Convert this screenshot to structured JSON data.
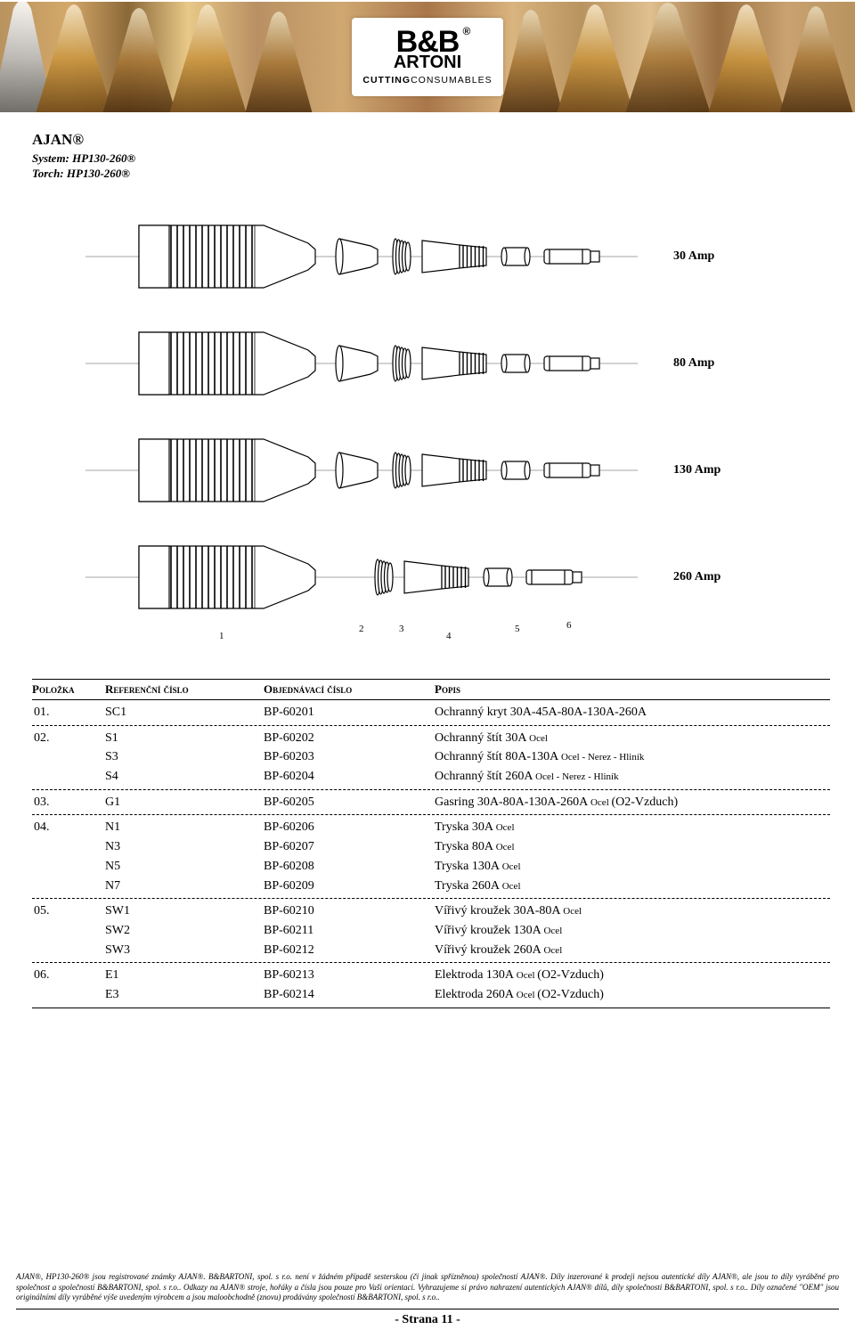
{
  "brand": "AJAN®",
  "system_label": "System: HP130-260®",
  "torch_label": "Torch: HP130-260®",
  "amp_rows": [
    "30 Amp",
    "80 Amp",
    "130 Amp",
    "260 Amp"
  ],
  "part_numbers": [
    "1",
    "2",
    "3",
    "4",
    "5",
    "6"
  ],
  "headers": {
    "item": "Položka",
    "ref": "Referenční číslo",
    "order": "Objednávací číslo",
    "desc": "Popis"
  },
  "groups": [
    {
      "rows": [
        {
          "item": "01.",
          "ref": "SC1",
          "order": "BP-60201",
          "desc": "Ochranný kryt 30A-45A-80A-130A-260A",
          "sub": ""
        }
      ]
    },
    {
      "rows": [
        {
          "item": "02.",
          "ref": "S1",
          "order": "BP-60202",
          "desc": "Ochranný štít  30A ",
          "sub": "Ocel"
        },
        {
          "item": "",
          "ref": "S3",
          "order": "BP-60203",
          "desc": "Ochranný štít  80A-130A ",
          "sub": "Ocel - Nerez - Hliník"
        },
        {
          "item": "",
          "ref": "S4",
          "order": "BP-60204",
          "desc": "Ochranný štít 260A ",
          "sub": "Ocel - Nerez - Hliník"
        }
      ]
    },
    {
      "rows": [
        {
          "item": "03.",
          "ref": "G1",
          "order": "BP-60205",
          "desc": "Gasring 30A-80A-130A-260A ",
          "sub": "Ocel ",
          "tail": "(O2-Vzduch)"
        }
      ]
    },
    {
      "rows": [
        {
          "item": "04.",
          "ref": "N1",
          "order": "BP-60206",
          "desc": "Tryska  30A ",
          "sub": "Ocel"
        },
        {
          "item": "",
          "ref": "N3",
          "order": "BP-60207",
          "desc": "Tryska  80A ",
          "sub": "Ocel"
        },
        {
          "item": "",
          "ref": "N5",
          "order": "BP-60208",
          "desc": "Tryska 130A ",
          "sub": "Ocel"
        },
        {
          "item": "",
          "ref": "N7",
          "order": "BP-60209",
          "desc": "Tryska 260A ",
          "sub": "Ocel"
        }
      ]
    },
    {
      "rows": [
        {
          "item": "05.",
          "ref": "SW1",
          "order": "BP-60210",
          "desc": "Vířivý kroužek  30A-80A ",
          "sub": "Ocel"
        },
        {
          "item": "",
          "ref": "SW2",
          "order": "BP-60211",
          "desc": "Vířivý kroužek 130A ",
          "sub": "Ocel"
        },
        {
          "item": "",
          "ref": "SW3",
          "order": "BP-60212",
          "desc": "Vířivý kroužek 260A ",
          "sub": "Ocel"
        }
      ]
    },
    {
      "rows": [
        {
          "item": "06.",
          "ref": "E1",
          "order": "BP-60213",
          "desc": "Elektroda 130A ",
          "sub": "Ocel ",
          "tail": "(O2-Vzduch)"
        },
        {
          "item": "",
          "ref": "E3",
          "order": "BP-60214",
          "desc": "Elektroda 260A ",
          "sub": "Ocel ",
          "tail": "(O2-Vzduch)"
        }
      ],
      "last": true
    }
  ],
  "footnote": "AJAN®, HP130-260® jsou registrované známky AJAN®. B&BARTONI, spol. s r.o. není v žádném případě sesterskou (či jinak spřízněnou) společností AJAN®. Díly inzerované k prodeji nejsou autentické díly AJAN®, ale jsou to díly vyráběné pro společnost a společností B&BARTONI, spol. s r.o.. Odkazy na AJAN® stroje, hořáky a čísla jsou pouze pro Vaši orientaci. Vyhrazujeme si právo nahrazení autentických AJAN® dílů, díly společnosti B&BARTONI, spol. s r.o.. Díly označené \"OEM\" jsou originálními díly vyráběné výše uvedeným výrobcem a jsou maloobchodně (znovu) prodávány společností B&BARTONI, spol. s r.o..",
  "page": "- Strana 11 -",
  "logo": {
    "top": "B&B",
    "bottom": "ARTONI",
    "tag_bold": "CUTTING",
    "tag_rest": "CONSUMABLES",
    "reg": "®"
  },
  "diagram": {
    "has_part2": [
      true,
      true,
      true,
      false
    ],
    "positions": {
      "n1": 150,
      "n2": 307,
      "n3": 352,
      "n4": 405,
      "n5": 482,
      "n6": 540
    }
  }
}
